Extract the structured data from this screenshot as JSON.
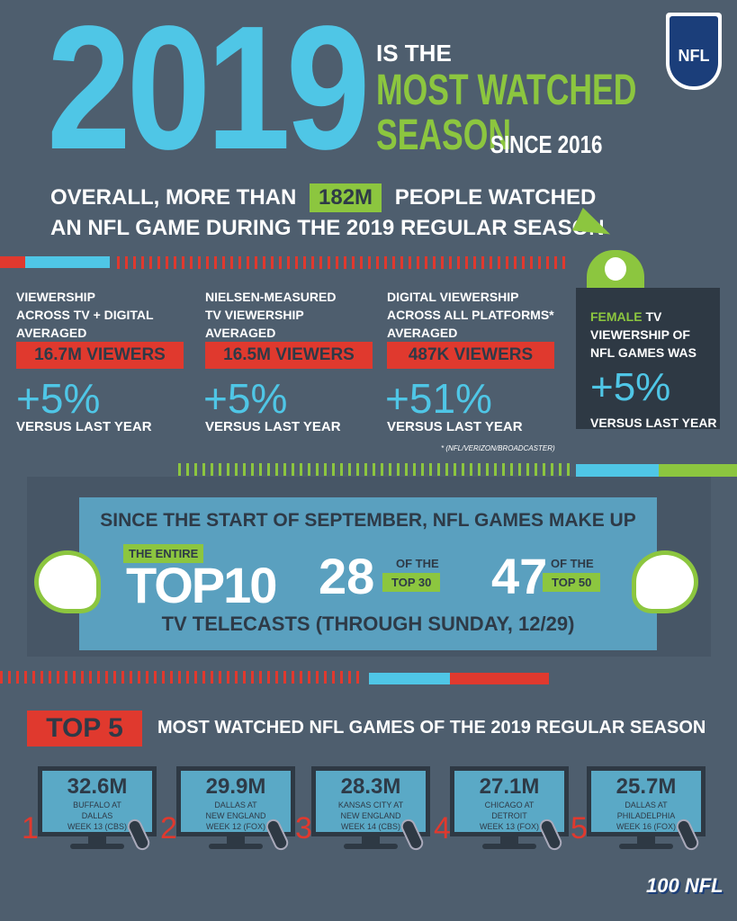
{
  "header": {
    "year": "2019",
    "is_the": "IS THE",
    "most_watched": "MOST WATCHED",
    "season": "SEASON",
    "since": "SINCE 2016",
    "logo": "NFL"
  },
  "summary": {
    "pre": "OVERALL, MORE THAN",
    "highlight": "182M",
    "post": "PEOPLE WATCHED",
    "line2": "AN NFL GAME DURING THE 2019 REGULAR SEASON"
  },
  "stats": [
    {
      "lines": [
        "VIEWERSHIP",
        "ACROSS TV + DIGITAL",
        "AVERAGED"
      ],
      "viewers": "16.7M VIEWERS",
      "change": "+5%",
      "versus": "VERSUS LAST YEAR"
    },
    {
      "lines": [
        "NIELSEN-MEASURED",
        "TV VIEWERSHIP",
        "AVERAGED"
      ],
      "viewers": "16.5M VIEWERS",
      "change": "+5%",
      "versus": "VERSUS LAST YEAR"
    },
    {
      "lines": [
        "DIGITAL VIEWERSHIP",
        "ACROSS ALL PLATFORMS*",
        "AVERAGED"
      ],
      "viewers": "487K VIEWERS",
      "change": "+51%",
      "versus": "VERSUS LAST YEAR"
    }
  ],
  "female": {
    "highlight": "FEMALE",
    "l1": "TV",
    "l2": "VIEWERSHIP OF",
    "l3": "NFL GAMES WAS",
    "change": "+5%",
    "versus": "VERSUS LAST YEAR"
  },
  "footnote": "* (NFL/VERIZON/BROADCASTER)",
  "band": {
    "headline": "SINCE THE START OF SEPTEMBER, NFL GAMES MAKE UP",
    "entire": "THE ENTIRE",
    "top10": "TOP10",
    "n28": "28",
    "of_the": "OF THE",
    "top30": "TOP 30",
    "n47": "47",
    "top50": "TOP 50",
    "footer": "TV TELECASTS (THROUGH SUNDAY, 12/29)"
  },
  "top5": {
    "badge": "TOP 5",
    "title": "MOST WATCHED NFL GAMES OF THE 2019 REGULAR SEASON",
    "games": [
      {
        "rank": "1",
        "viewers": "32.6M",
        "l1": "BUFFALO AT",
        "l2": "DALLAS",
        "l3": "WEEK 13 (CBS)"
      },
      {
        "rank": "2",
        "viewers": "29.9M",
        "l1": "DALLAS AT",
        "l2": "NEW ENGLAND",
        "l3": "WEEK 12 (FOX)"
      },
      {
        "rank": "3",
        "viewers": "28.3M",
        "l1": "KANSAS CITY AT",
        "l2": "NEW ENGLAND",
        "l3": "WEEK 14 (CBS)"
      },
      {
        "rank": "4",
        "viewers": "27.1M",
        "l1": "CHICAGO AT",
        "l2": "DETROIT",
        "l3": "WEEK 13 (FOX)"
      },
      {
        "rank": "5",
        "viewers": "25.7M",
        "l1": "DALLAS AT",
        "l2": "PHILADELPHIA",
        "l3": "WEEK 16 (FOX)"
      }
    ]
  },
  "footer_logo": "100 NFL",
  "colors": {
    "bg": "#4e5e6e",
    "cyan": "#4fc6e6",
    "green": "#8cc63f",
    "red": "#e0392e",
    "dark": "#2e3a47",
    "band": "#5aa0bf"
  }
}
